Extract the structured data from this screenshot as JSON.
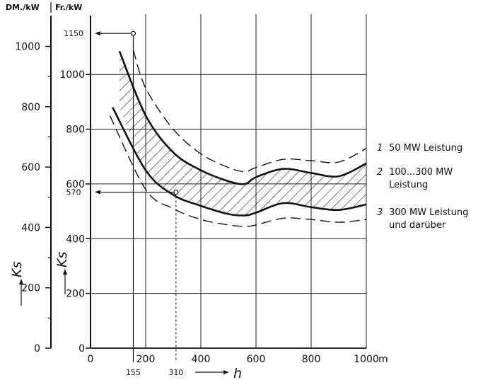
{
  "chart_data": {
    "type": "line",
    "x_unit": "m",
    "x_ticks": [
      0,
      200,
      400,
      600,
      800,
      1000
    ],
    "x_label": "h",
    "xlim": [
      0,
      1000
    ],
    "y_left_unit": "DM./kW",
    "y_left_ticks": [
      0,
      200,
      400,
      600,
      800,
      1000
    ],
    "y_left_label": "Ks",
    "y_left_lim": [
      0,
      1000
    ],
    "y_right_unit": "Fr./kW",
    "y_right_ticks": [
      0,
      200,
      400,
      600,
      800,
      1000
    ],
    "y_right_label": "Ks",
    "y_right_lim": [
      0,
      1000
    ],
    "grid": true,
    "series": [
      {
        "name": "50 MW Leistung",
        "style": "dashed",
        "x": [
          155,
          200,
          300,
          400,
          500,
          560,
          600,
          700,
          800,
          900,
          1000
        ],
        "y": [
          1090,
          950,
          800,
          710,
          660,
          645,
          660,
          690,
          685,
          680,
          730
        ]
      },
      {
        "name": "50 MW Leistung",
        "style": "solid",
        "x": [
          105,
          200,
          300,
          400,
          500,
          560,
          600,
          700,
          800,
          900,
          1000
        ],
        "y": [
          1085,
          850,
          715,
          650,
          610,
          600,
          625,
          655,
          640,
          628,
          675
        ]
      },
      {
        "name": "100...300 MW Leistung",
        "style": "hatched band",
        "x": [
          105,
          200,
          300,
          400,
          500,
          560,
          600,
          700,
          800,
          900,
          1000
        ],
        "y_upper": [
          1085,
          850,
          715,
          650,
          610,
          600,
          625,
          655,
          640,
          628,
          675
        ],
        "y_lower": [
          880,
          650,
          560,
          520,
          490,
          485,
          495,
          530,
          515,
          505,
          525
        ]
      },
      {
        "name": "300 MW Leistung und darüber",
        "style": "solid",
        "x": [
          80,
          200,
          300,
          400,
          500,
          560,
          600,
          700,
          800,
          900,
          1000
        ],
        "y": [
          880,
          650,
          560,
          520,
          490,
          485,
          495,
          530,
          515,
          505,
          525
        ]
      },
      {
        "name": "300 MW Leistung und darüber",
        "style": "dashed",
        "x": [
          70,
          200,
          300,
          400,
          500,
          560,
          600,
          700,
          800,
          900,
          1000
        ],
        "y": [
          850,
          580,
          510,
          470,
          450,
          445,
          450,
          475,
          470,
          460,
          470
        ]
      }
    ],
    "annotations": [
      {
        "kind": "reference",
        "x": 155,
        "y_right": 1150,
        "x_label": "155",
        "y_label": "1150"
      },
      {
        "kind": "reference",
        "x": 310,
        "y_right": 570,
        "x_label": "310",
        "y_label": "570"
      }
    ],
    "legend": [
      {
        "number": "1",
        "label": "50 MW Leistung"
      },
      {
        "number": "2",
        "label": "100...300 MW Leistung"
      },
      {
        "number": "3",
        "label": "300 MW Leistung und darüber"
      }
    ]
  }
}
